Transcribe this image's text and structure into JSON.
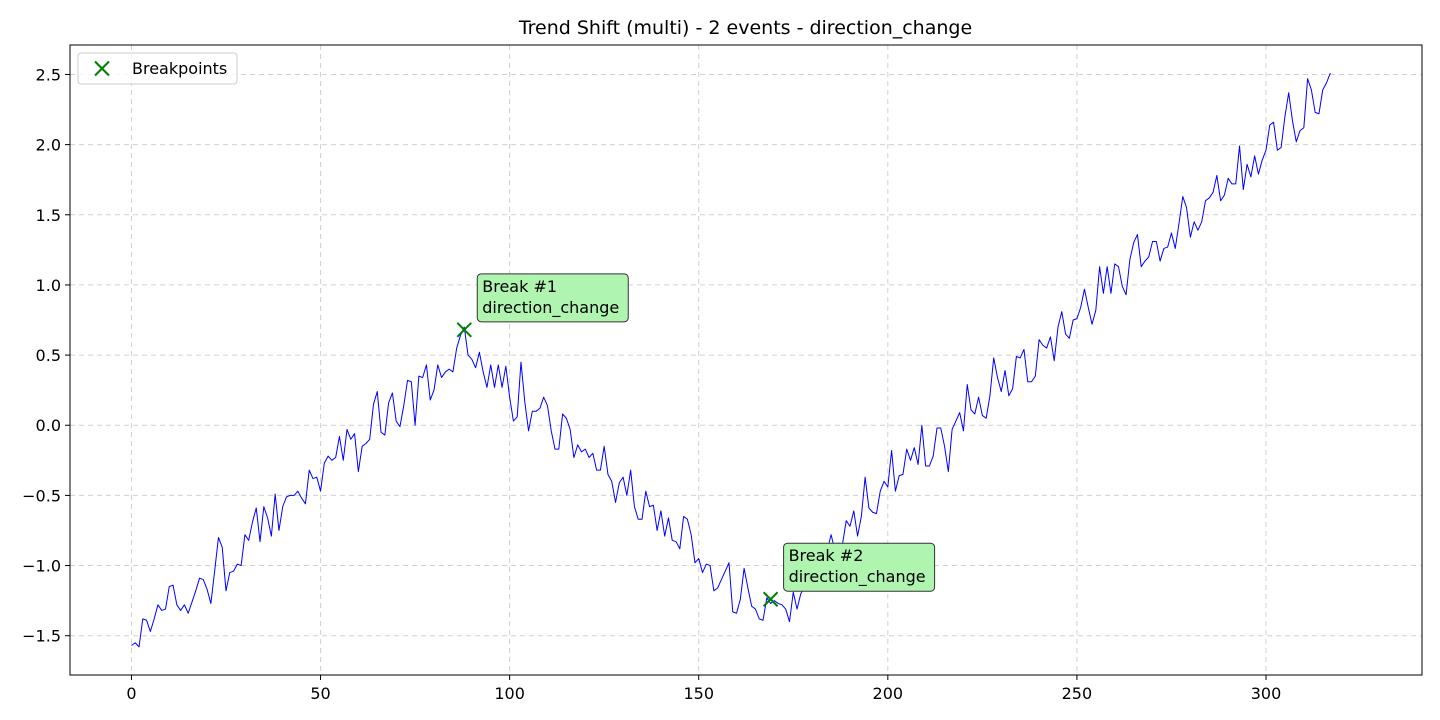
{
  "chart_data": {
    "type": "line",
    "title": "Trend Shift (multi) - 2 events - direction_change",
    "xlabel": "",
    "ylabel": "",
    "xlim": [
      -16.25,
      341.25
    ],
    "ylim": [
      -1.78,
      2.71
    ],
    "xticks": [
      0,
      50,
      100,
      150,
      200,
      250,
      300
    ],
    "yticks": [
      -1.5,
      -1.0,
      -0.5,
      0.0,
      0.5,
      1.0,
      1.5,
      2.0,
      2.5
    ],
    "xtick_labels": [
      "0",
      "50",
      "100",
      "150",
      "200",
      "250",
      "300"
    ],
    "ytick_labels": [
      "−1.5",
      "−1.0",
      "−0.5",
      "0.0",
      "0.5",
      "1.0",
      "1.5",
      "2.0",
      "2.5"
    ],
    "grid": true,
    "line_color": "#0000ff",
    "marker_color": "#008000",
    "legend": {
      "placement": "top-left",
      "entries": [
        {
          "label": "Breakpoints",
          "marker": "x",
          "color": "#008000"
        }
      ]
    },
    "series": [
      {
        "x_start": 0,
        "values": [
          -1.57,
          -1.55,
          -1.58,
          -1.38,
          -1.39,
          -1.47,
          -1.38,
          -1.28,
          -1.32,
          -1.31,
          -1.15,
          -1.14,
          -1.28,
          -1.32,
          -1.28,
          -1.34,
          -1.26,
          -1.18,
          -1.09,
          -1.1,
          -1.17,
          -1.27,
          -1.04,
          -0.8,
          -0.87,
          -1.18,
          -1.05,
          -1.04,
          -0.99,
          -1.0,
          -0.78,
          -0.82,
          -0.69,
          -0.59,
          -0.83,
          -0.58,
          -0.66,
          -0.79,
          -0.49,
          -0.75,
          -0.58,
          -0.51,
          -0.5,
          -0.5,
          -0.47,
          -0.52,
          -0.56,
          -0.32,
          -0.38,
          -0.37,
          -0.47,
          -0.27,
          -0.22,
          -0.25,
          -0.23,
          -0.08,
          -0.25,
          -0.03,
          -0.1,
          -0.06,
          -0.33,
          -0.15,
          -0.13,
          -0.1,
          0.15,
          0.24,
          -0.05,
          -0.07,
          0.16,
          0.23,
          0.03,
          -0.01,
          0.14,
          0.32,
          0.31,
          0.0,
          0.35,
          0.34,
          0.43,
          0.18,
          0.25,
          0.43,
          0.34,
          0.38,
          0.4,
          0.38,
          0.55,
          0.64,
          0.7,
          0.5,
          0.47,
          0.41,
          0.52,
          0.38,
          0.27,
          0.43,
          0.27,
          0.43,
          0.27,
          0.42,
          0.2,
          0.03,
          0.06,
          0.45,
          0.17,
          -0.04,
          0.1,
          0.1,
          0.12,
          0.2,
          0.14,
          -0.04,
          -0.17,
          -0.17,
          0.08,
          0.05,
          -0.03,
          -0.23,
          -0.14,
          -0.19,
          -0.17,
          -0.23,
          -0.2,
          -0.32,
          -0.32,
          -0.15,
          -0.35,
          -0.4,
          -0.55,
          -0.41,
          -0.37,
          -0.5,
          -0.32,
          -0.58,
          -0.67,
          -0.67,
          -0.47,
          -0.58,
          -0.57,
          -0.75,
          -0.61,
          -0.79,
          -0.66,
          -0.82,
          -0.83,
          -0.88,
          -0.65,
          -0.67,
          -0.78,
          -0.98,
          -0.95,
          -1.05,
          -0.99,
          -1.0,
          -1.18,
          -1.16,
          -1.1,
          -1.04,
          -0.98,
          -1.33,
          -1.34,
          -1.24,
          -1.02,
          -1.16,
          -1.29,
          -1.31,
          -1.38,
          -1.39,
          -1.23,
          -1.27,
          -1.25,
          -1.27,
          -1.28,
          -1.31,
          -1.4,
          -1.19,
          -1.31,
          -1.2,
          -1.15,
          -1.05,
          -1.09,
          -1.01,
          -0.87,
          -0.88,
          -0.89,
          -0.78,
          -0.89,
          -0.84,
          -0.85,
          -0.68,
          -0.72,
          -0.61,
          -0.79,
          -0.65,
          -0.37,
          -0.59,
          -0.62,
          -0.63,
          -0.47,
          -0.4,
          -0.44,
          -0.18,
          -0.47,
          -0.36,
          -0.35,
          -0.17,
          -0.25,
          -0.16,
          -0.28,
          0.0,
          -0.29,
          -0.29,
          -0.22,
          -0.02,
          -0.02,
          -0.15,
          -0.33,
          -0.03,
          0.03,
          0.09,
          -0.04,
          0.29,
          0.11,
          0.08,
          0.2,
          0.07,
          0.05,
          0.21,
          0.48,
          0.34,
          0.24,
          0.39,
          0.21,
          0.26,
          0.49,
          0.48,
          0.54,
          0.31,
          0.31,
          0.35,
          0.61,
          0.57,
          0.55,
          0.63,
          0.46,
          0.7,
          0.81,
          0.65,
          0.62,
          0.75,
          0.76,
          0.84,
          0.97,
          0.84,
          0.72,
          0.82,
          1.13,
          0.94,
          1.13,
          0.94,
          1.15,
          1.13,
          0.99,
          0.93,
          1.18,
          1.3,
          1.36,
          1.13,
          1.17,
          1.2,
          1.31,
          1.31,
          1.17,
          1.26,
          1.27,
          1.37,
          1.26,
          1.44,
          1.63,
          1.55,
          1.34,
          1.45,
          1.39,
          1.45,
          1.6,
          1.62,
          1.66,
          1.78,
          1.6,
          1.64,
          1.76,
          1.72,
          1.72,
          1.99,
          1.68,
          1.86,
          1.77,
          1.92,
          1.79,
          1.89,
          1.96,
          2.14,
          2.16,
          1.96,
          1.98,
          2.2,
          2.37,
          2.17,
          2.02,
          2.1,
          2.12,
          2.47,
          2.39,
          2.23,
          2.22,
          2.39,
          2.44,
          2.51
        ]
      }
    ],
    "breakpoints": [
      {
        "x": 88,
        "y": 0.68,
        "label_line1": "Break #1",
        "label_line2": "direction_change"
      },
      {
        "x": 169,
        "y": -1.24,
        "label_line1": "Break #2",
        "label_line2": "direction_change"
      }
    ],
    "annotation_style": {
      "fill": "#aff5b0",
      "border": "#333333"
    }
  }
}
